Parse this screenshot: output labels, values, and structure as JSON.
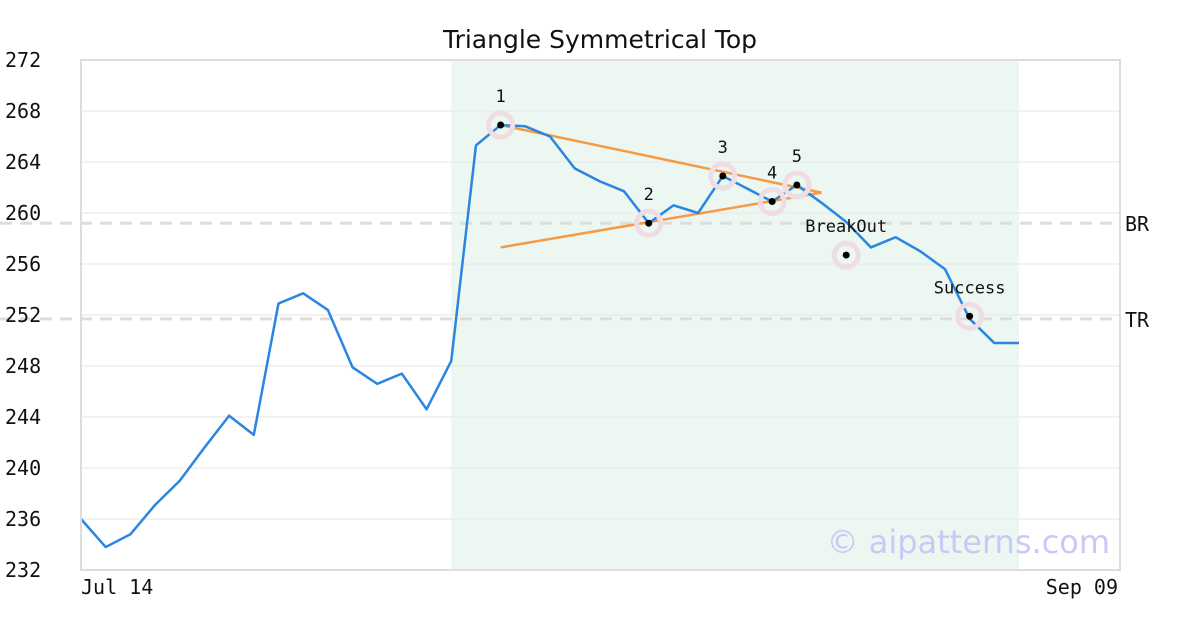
{
  "chart_data": {
    "type": "line",
    "title": "Triangle Symmetrical Top",
    "xlabel": "",
    "ylabel": "",
    "ylim": [
      232,
      272
    ],
    "y_ticks": [
      232,
      236,
      240,
      244,
      248,
      252,
      256,
      260,
      264,
      268,
      272
    ],
    "x_tick_labels": [
      "Jul 14",
      "Sep 09"
    ],
    "grid": "horizontal",
    "colors": {
      "line": "#2a86e0",
      "trendline": "#f59a45",
      "highlight": "#edf7f2",
      "level": "#dddddd",
      "marker_halo": "#f0dde4",
      "marker_dot": "#000000",
      "axis": "#dddddd",
      "watermark": "#c9c9f5"
    },
    "series": [
      {
        "values": [
          236.0,
          233.8,
          234.8,
          237.1,
          239.0,
          241.6,
          244.1,
          242.6,
          252.9,
          253.7,
          252.4,
          247.9,
          246.6,
          247.4,
          244.6,
          248.4,
          265.3,
          266.9,
          266.8,
          266.0,
          263.5,
          262.5,
          261.7,
          259.2,
          260.6,
          260.0,
          262.9,
          261.9,
          260.9,
          262.2,
          260.8,
          259.3,
          257.3,
          258.1,
          257.0,
          255.6,
          251.7,
          249.8,
          249.8
        ]
      }
    ],
    "highlight_range": [
      15,
      38
    ],
    "trendlines": [
      {
        "from": [
          17,
          266.9
        ],
        "to": [
          30,
          261.6
        ]
      },
      {
        "from": [
          17,
          257.3
        ],
        "to": [
          30,
          261.6
        ]
      }
    ],
    "levels": [
      {
        "label": "BR",
        "value": 259.2
      },
      {
        "label": "TR",
        "value": 251.7
      }
    ],
    "points": [
      {
        "label": "1",
        "x": 17,
        "y": 266.9
      },
      {
        "label": "2",
        "x": 23,
        "y": 259.2
      },
      {
        "label": "3",
        "x": 26,
        "y": 262.9
      },
      {
        "label": "4",
        "x": 28,
        "y": 260.9
      },
      {
        "label": "5",
        "x": 29,
        "y": 262.2
      },
      {
        "label": "BreakOut",
        "x": 31,
        "y": 256.7
      },
      {
        "label": "Success",
        "x": 36,
        "y": 251.9
      }
    ],
    "watermark": "© aipatterns.com"
  }
}
